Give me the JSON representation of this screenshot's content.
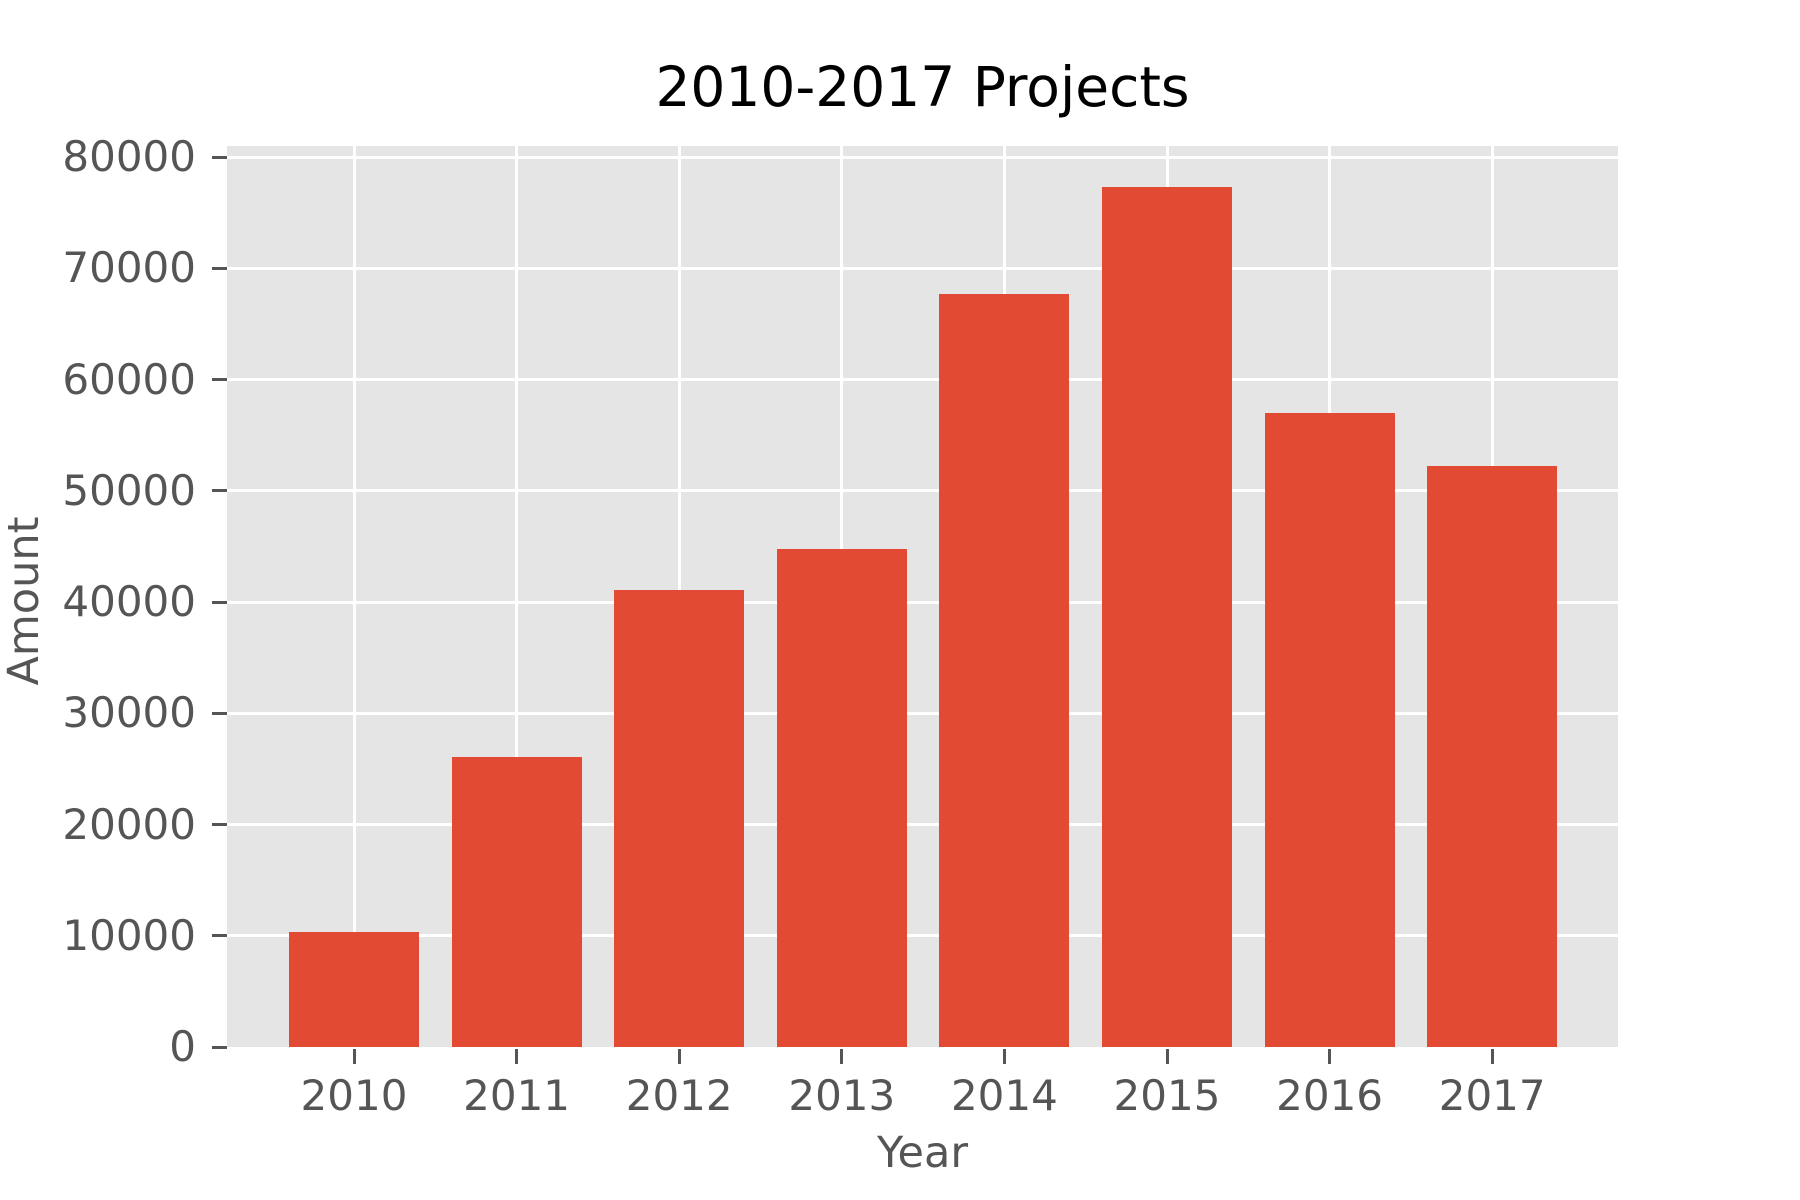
{
  "chart_data": {
    "type": "bar",
    "title": "2010-2017 Projects",
    "xlabel": "Year",
    "ylabel": "Amount",
    "categories": [
      "2010",
      "2011",
      "2012",
      "2013",
      "2014",
      "2015",
      "2016",
      "2017"
    ],
    "values": [
      10300,
      26100,
      41100,
      44800,
      67700,
      77300,
      57000,
      52200
    ],
    "ylim": [
      0,
      81000
    ],
    "yticks": [
      0,
      10000,
      20000,
      30000,
      40000,
      50000,
      60000,
      70000,
      80000
    ],
    "ytick_labels": [
      "0",
      "10000",
      "20000",
      "30000",
      "40000",
      "50000",
      "60000",
      "70000",
      "80000"
    ],
    "grid": true,
    "legend_position": "none",
    "style": {
      "bar_color": "#E24A33",
      "plot_background": "#E5E5E5",
      "grid_color": "#FFFFFF",
      "tick_color": "#555555",
      "label_color": "#555555",
      "title_color": "#000000",
      "figure_background": "#FFFFFF"
    }
  }
}
